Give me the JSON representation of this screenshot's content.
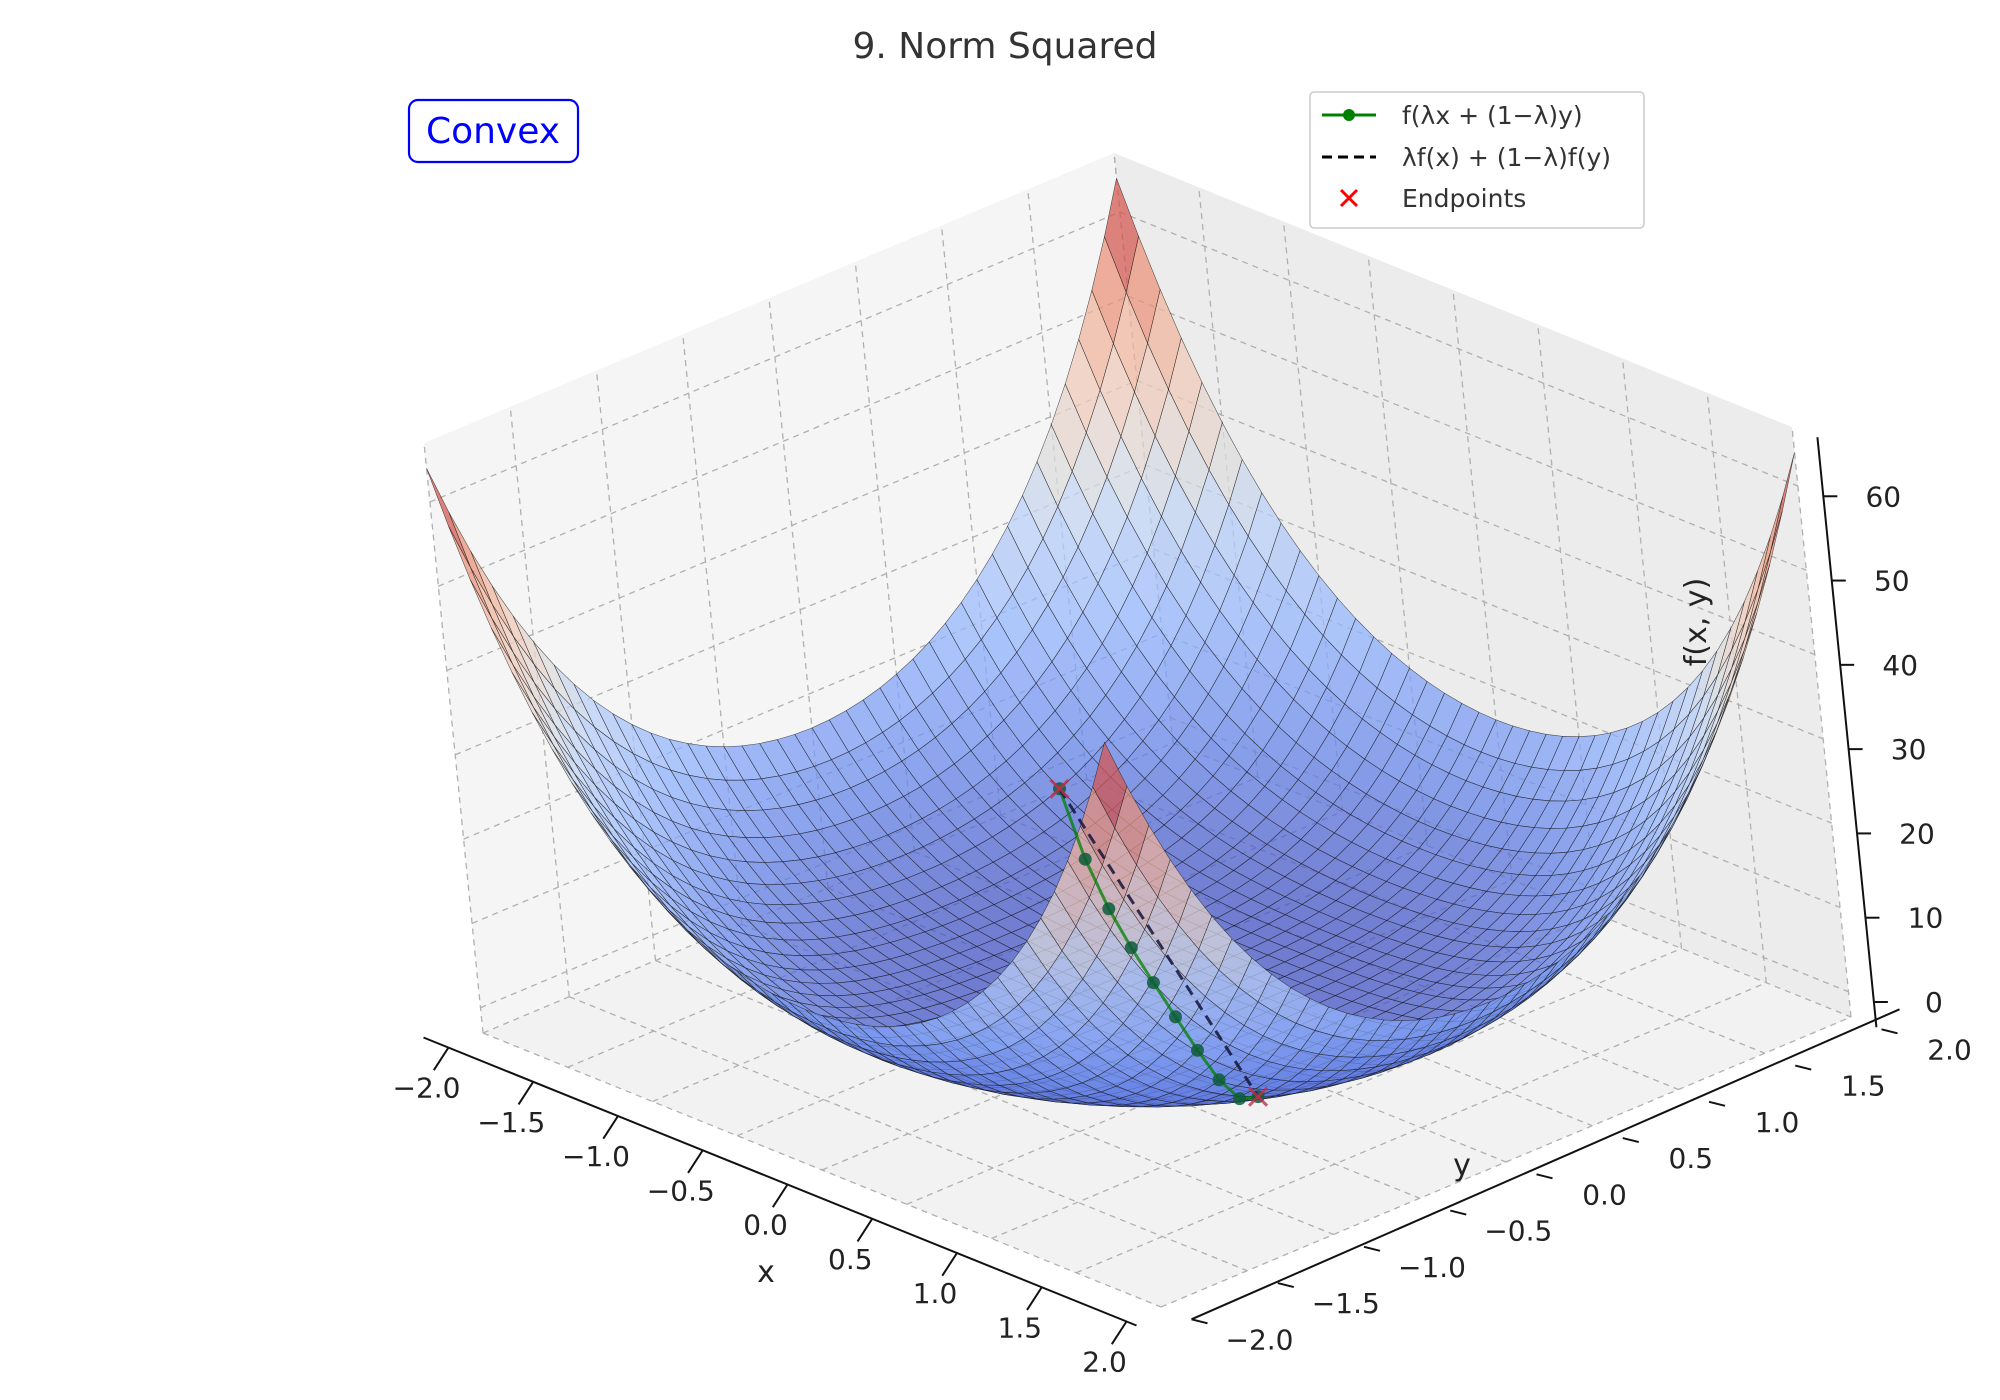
{
  "chart_data": {
    "type": "surface3d",
    "title": "9. Norm Squared",
    "badge": "Convex",
    "xlabel": "x",
    "ylabel": "y",
    "zlabel": "f(x, y)",
    "xlim": [
      -2,
      2
    ],
    "ylim": [
      -2,
      2
    ],
    "zlim": [
      -3,
      67
    ],
    "xticks": [
      "−2.0",
      "−1.5",
      "−1.0",
      "−0.5",
      "0.0",
      "0.5",
      "1.0",
      "1.5",
      "2.0"
    ],
    "yticks": [
      "−2.0",
      "−1.5",
      "−1.0",
      "−0.5",
      "0.0",
      "0.5",
      "1.0",
      "1.5",
      "2.0"
    ],
    "zticks": [
      "0",
      "10",
      "20",
      "30",
      "40",
      "50",
      "60"
    ],
    "grid": true,
    "colormap": "coolwarm",
    "legend": {
      "placement": "top-right",
      "entries": [
        {
          "label": "f(λx + (1−λ)y)",
          "color": "#008000",
          "style": "line-marker"
        },
        {
          "label": "λf(x) + (1−λ)f(y)",
          "color": "#000000",
          "style": "dashed"
        },
        {
          "label": "Endpoints",
          "color": "#ff0000",
          "style": "x-marker"
        }
      ]
    },
    "segment": {
      "start": [
        -1.4,
        0.8
      ],
      "end": [
        1.4,
        -0.8
      ],
      "n_points": 10
    },
    "colors": {
      "surface_low": "#3b4cc0",
      "surface_high": "#b40426",
      "interp_line": "#008000",
      "chord": "#000000",
      "endpoints": "#ff0000",
      "badge": "#0000ff"
    }
  }
}
